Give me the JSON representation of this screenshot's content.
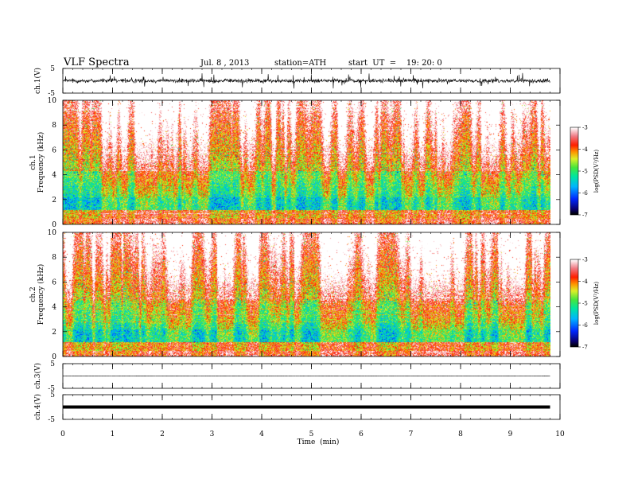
{
  "header": {
    "title": "VLF  Spectra",
    "date": "Jul.  8  , 2013",
    "station": "station=ATH",
    "start_time": "start  UT  =    19: 20: 0"
  },
  "chart_data": [
    {
      "type": "line",
      "name": "ch.1 waveform",
      "ylabel": "ch.1(V)",
      "ylim": [
        -5,
        5
      ],
      "yticks": [
        "5",
        "-5"
      ],
      "baseline": 0,
      "amplitude": 1.2,
      "burst_amplitude": 3.2,
      "xlim": [
        0,
        9.8
      ]
    },
    {
      "type": "heatmap",
      "name": "ch.1 spectrogram",
      "ylabel": [
        "ch.1",
        "Frequency  (kHz)"
      ],
      "ylim": [
        0,
        10
      ],
      "yticks": [
        "0",
        "2",
        "4",
        "6",
        "8",
        "10"
      ],
      "xlim": [
        0,
        9.8
      ],
      "colorbar": {
        "label": "log(PSD(V²/Hz)",
        "range": [
          -7,
          -3
        ],
        "ticks": [
          "-3",
          "-4",
          "-5",
          "-6",
          "-7"
        ]
      }
    },
    {
      "type": "heatmap",
      "name": "ch.2 spectrogram",
      "ylabel": [
        "ch.2",
        "Frequency  (kHz)"
      ],
      "ylim": [
        0,
        10
      ],
      "yticks": [
        "0",
        "2",
        "4",
        "6",
        "8",
        "10"
      ],
      "xlim": [
        0,
        9.8
      ],
      "colorbar": {
        "label": "log(PSD(V²/Hz)",
        "range": [
          -7,
          -3
        ],
        "ticks": [
          "-3",
          "-4",
          "-5",
          "-6",
          "-7"
        ]
      }
    },
    {
      "type": "line",
      "name": "ch.3 waveform",
      "ylabel": "ch.3(V)",
      "ylim": [
        -5,
        5
      ],
      "yticks": [
        "5",
        "-5"
      ],
      "baseline": 0,
      "amplitude": 0.08,
      "xlim": [
        0,
        9.8
      ]
    },
    {
      "type": "line",
      "name": "ch.4 waveform",
      "ylabel": "ch.4(V)",
      "ylim": [
        -5,
        5
      ],
      "yticks": [
        "5",
        "-5"
      ],
      "baseline": 0,
      "amplitude": 0.3,
      "xlim": [
        0,
        9.8
      ]
    }
  ],
  "x_axis": {
    "label": "Time  (min)",
    "range": [
      0,
      10
    ],
    "ticks": [
      "0",
      "1",
      "2",
      "3",
      "4",
      "5",
      "6",
      "7",
      "8",
      "9",
      "10"
    ]
  }
}
